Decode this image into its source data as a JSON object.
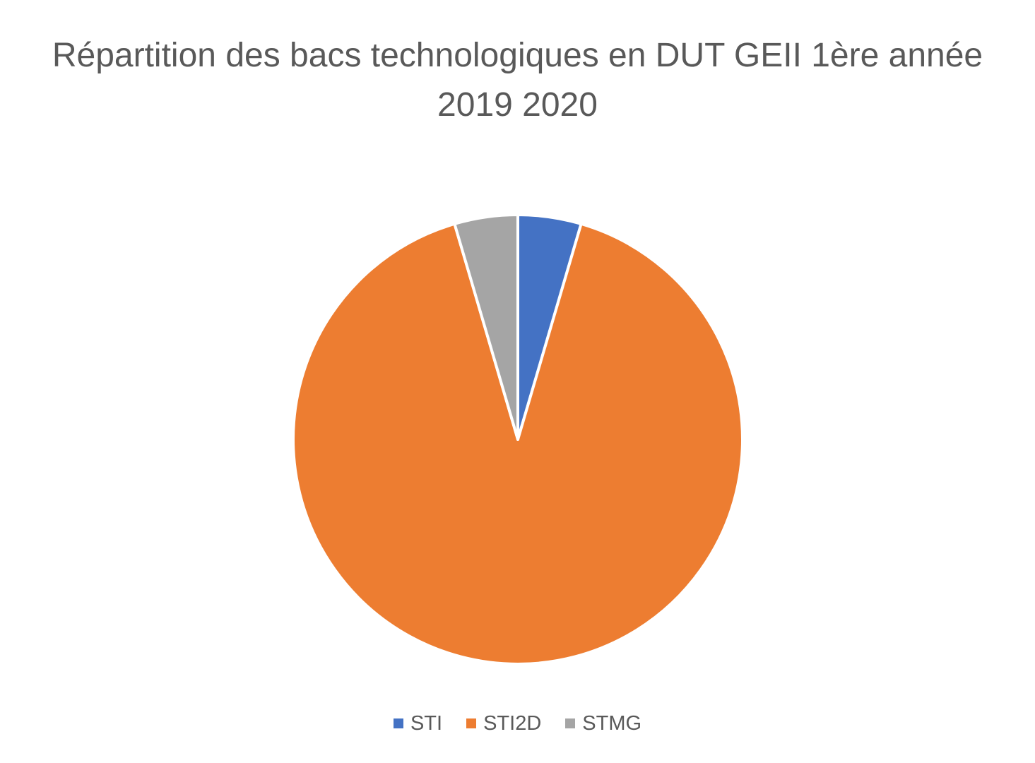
{
  "chart_data": {
    "type": "pie",
    "title_lines": [
      "Répartition des bacs technologiques en DUT GEII 1ère année",
      "2019 2020"
    ],
    "categories": [
      "STI",
      "STI2D",
      "STMG"
    ],
    "values": [
      1,
      20,
      1
    ],
    "colors": [
      "#4472C4",
      "#ED7D31",
      "#A5A5A5"
    ],
    "legend_position": "bottom",
    "start_angle_deg": 0,
    "direction": "clockwise"
  }
}
